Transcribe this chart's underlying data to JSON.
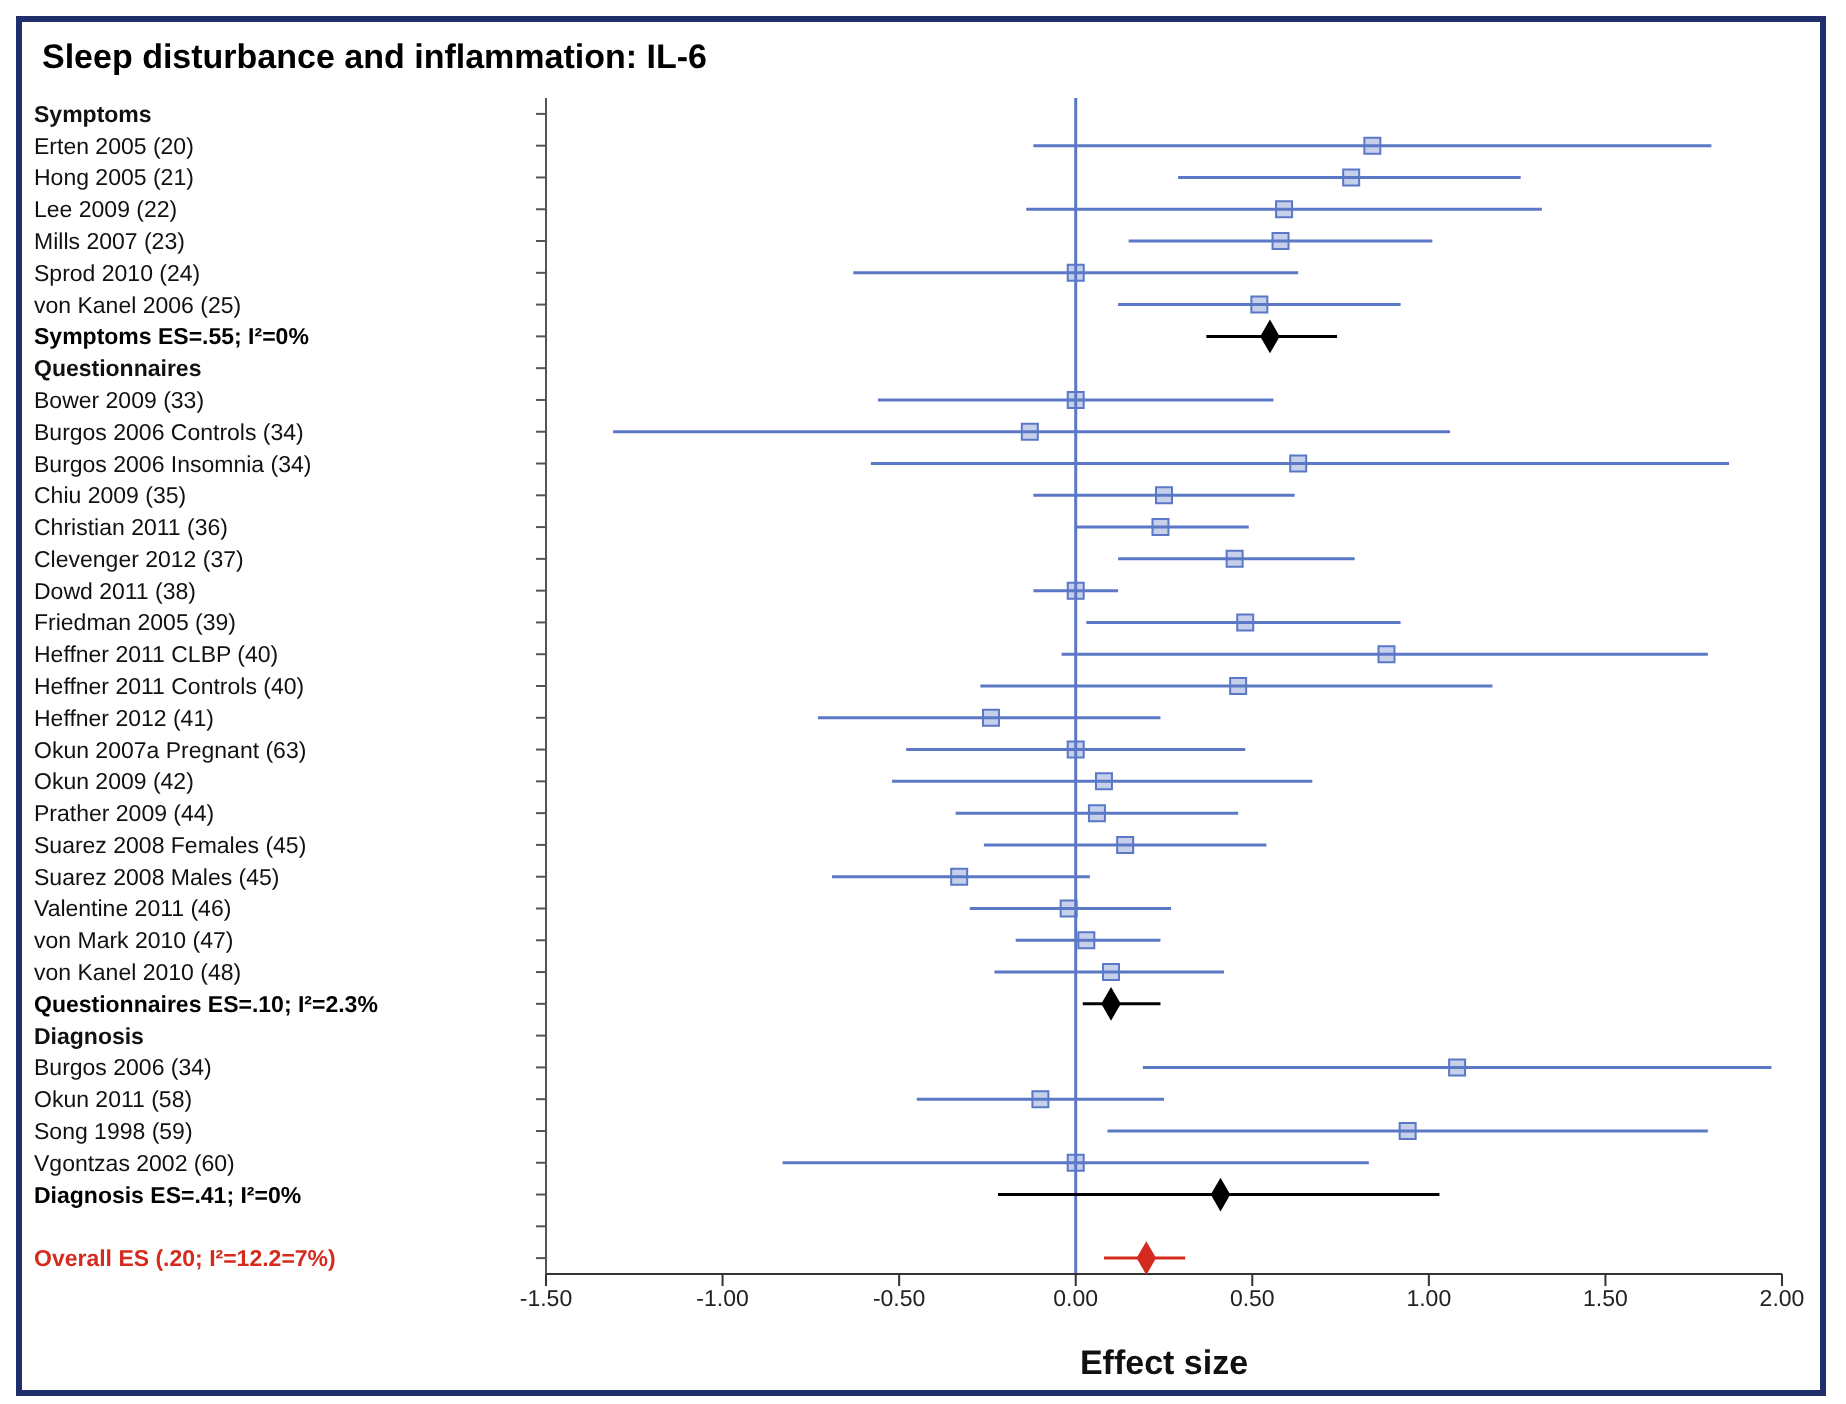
{
  "chart_data": {
    "type": "scatter",
    "orientation": "horizontal",
    "title": "Sleep disturbance and inflammation: IL-6",
    "xlabel": "Effect size",
    "categories": [
      "Symptoms",
      "Erten 2005 (20)",
      "Hong 2005 (21)",
      "Lee 2009 (22)",
      "Mills 2007 (23)",
      "Sprod 2010 (24)",
      "von Kanel 2006 (25)",
      "Symptoms ES=.55; I²=0%",
      "Questionnaires",
      "Bower 2009 (33)",
      "Burgos 2006 Controls (34)",
      "Burgos 2006 Insomnia (34)",
      "Chiu 2009 (35)",
      "Christian 2011 (36)",
      "Clevenger 2012 (37)",
      "Dowd 2011 (38)",
      "Friedman 2005 (39)",
      "Heffner 2011 CLBP (40)",
      "Heffner 2011 Controls (40)",
      "Heffner 2012 (41)",
      "Okun 2007a Pregnant (63)",
      "Okun 2009 (42)",
      "Prather 2009 (44)",
      "Suarez 2008 Females (45)",
      "Suarez 2008 Males (45)",
      "Valentine 2011 (46)",
      "von Mark 2010 (47)",
      "von Kanel 2010 (48)",
      "Questionnaires ES=.10; I²=2.3%",
      "Diagnosis",
      "Burgos 2006 (34)",
      "Okun 2011 (58)",
      "Song 1998 (59)",
      "Vgontzas 2002 (60)",
      "Diagnosis ES=.41; I²=0%",
      null,
      "Overall ES (.20; I²=12.2=7%)"
    ],
    "series": [
      {
        "marker": "square",
        "color": "#5b78c6",
        "values": [
          null,
          0.84,
          0.78,
          0.59,
          0.58,
          0.0,
          0.52,
          null,
          null,
          0.0,
          -0.13,
          0.63,
          0.25,
          0.24,
          0.45,
          0.0,
          0.48,
          0.88,
          0.46,
          -0.24,
          0.0,
          0.08,
          0.06,
          0.14,
          -0.33,
          -0.02,
          0.03,
          0.1,
          null,
          null,
          1.08,
          -0.1,
          0.94,
          0.0,
          null,
          null,
          null
        ],
        "errors": [
          null,
          [
            -0.12,
            1.8
          ],
          [
            0.29,
            1.26
          ],
          [
            -0.14,
            1.32
          ],
          [
            0.15,
            1.01
          ],
          [
            -0.63,
            0.63
          ],
          [
            0.12,
            0.92
          ],
          null,
          null,
          [
            -0.56,
            0.56
          ],
          [
            -1.31,
            1.06
          ],
          [
            -0.58,
            1.85
          ],
          [
            -0.12,
            0.62
          ],
          [
            0.0,
            0.49
          ],
          [
            0.12,
            0.79
          ],
          [
            -0.12,
            0.12
          ],
          [
            0.03,
            0.92
          ],
          [
            -0.04,
            1.79
          ],
          [
            -0.27,
            1.18
          ],
          [
            -0.73,
            0.24
          ],
          [
            -0.48,
            0.48
          ],
          [
            -0.52,
            0.67
          ],
          [
            -0.34,
            0.46
          ],
          [
            -0.26,
            0.54
          ],
          [
            -0.69,
            0.04
          ],
          [
            -0.3,
            0.27
          ],
          [
            -0.17,
            0.24
          ],
          [
            -0.23,
            0.42
          ],
          null,
          null,
          [
            0.19,
            1.97
          ],
          [
            -0.45,
            0.25
          ],
          [
            0.09,
            1.79
          ],
          [
            -0.83,
            0.83
          ],
          null,
          null,
          null
        ]
      },
      {
        "marker": "diamond",
        "color": "#000000",
        "values": [
          null,
          null,
          null,
          null,
          null,
          null,
          null,
          0.55,
          null,
          null,
          null,
          null,
          null,
          null,
          null,
          null,
          null,
          null,
          null,
          null,
          null,
          null,
          null,
          null,
          null,
          null,
          null,
          null,
          0.1,
          null,
          null,
          null,
          null,
          null,
          0.41,
          null,
          null
        ],
        "errors": [
          null,
          null,
          null,
          null,
          null,
          null,
          null,
          [
            0.37,
            0.74
          ],
          null,
          null,
          null,
          null,
          null,
          null,
          null,
          null,
          null,
          null,
          null,
          null,
          null,
          null,
          null,
          null,
          null,
          null,
          null,
          null,
          [
            0.02,
            0.24
          ],
          null,
          null,
          null,
          null,
          null,
          [
            -0.22,
            1.03
          ],
          null,
          null
        ]
      },
      {
        "marker": "diamond",
        "color": "#d42b1e",
        "values": [
          null,
          null,
          null,
          null,
          null,
          null,
          null,
          null,
          null,
          null,
          null,
          null,
          null,
          null,
          null,
          null,
          null,
          null,
          null,
          null,
          null,
          null,
          null,
          null,
          null,
          null,
          null,
          null,
          null,
          null,
          null,
          null,
          null,
          null,
          null,
          null,
          0.2
        ],
        "errors": [
          null,
          null,
          null,
          null,
          null,
          null,
          null,
          null,
          null,
          null,
          null,
          null,
          null,
          null,
          null,
          null,
          null,
          null,
          null,
          null,
          null,
          null,
          null,
          null,
          null,
          null,
          null,
          null,
          null,
          null,
          null,
          null,
          null,
          null,
          null,
          null,
          [
            0.08,
            0.31
          ]
        ]
      }
    ],
    "xlim": [
      -1.5,
      2.0
    ],
    "xticks": [
      {
        "value": -1.5,
        "label": "-1.50"
      },
      {
        "value": -1.0,
        "label": "-1.00"
      },
      {
        "value": -0.5,
        "label": "-0.50"
      },
      {
        "value": 0,
        "label": "0.00"
      },
      {
        "value": 0.5,
        "label": "0.50"
      },
      {
        "value": 1.0,
        "label": "1.00"
      },
      {
        "value": 1.5,
        "label": "1.50"
      },
      {
        "value": 2.0,
        "label": "2.00"
      }
    ],
    "ref_lines": [
      {
        "axis": "x",
        "value": 0,
        "color": "#5b78c6"
      }
    ]
  }
}
